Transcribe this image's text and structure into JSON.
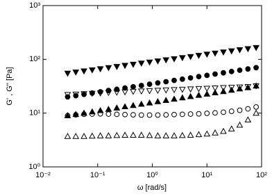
{
  "chart_data": {
    "type": "scatter",
    "xlabel": "ω [rad/s]",
    "ylabel": "G' , G'' [Pa]",
    "xscale": "log",
    "yscale": "log",
    "xlim": [
      0.01,
      100
    ],
    "ylim": [
      1,
      1000
    ],
    "xticks": [
      {
        "value": 0.01,
        "label": "10⁻²"
      },
      {
        "value": 0.1,
        "label": "10⁻¹"
      },
      {
        "value": 1,
        "label": "10⁰"
      },
      {
        "value": 10,
        "label": "10¹"
      },
      {
        "value": 100,
        "label": "10²"
      }
    ],
    "yticks": [
      {
        "value": 1,
        "label": "10⁰"
      },
      {
        "value": 10,
        "label": "10¹"
      },
      {
        "value": 100,
        "label": "10²"
      },
      {
        "value": 1000,
        "label": "10³"
      }
    ],
    "x": [
      0.0282,
      0.0398,
      0.0562,
      0.0794,
      0.112,
      0.158,
      0.224,
      0.316,
      0.447,
      0.631,
      0.891,
      1.26,
      1.78,
      2.51,
      3.55,
      5.01,
      7.08,
      10,
      14.1,
      20,
      28.2,
      39.8,
      56.2,
      79.4
    ],
    "series": [
      {
        "marker": "triangle-down",
        "filled": true,
        "color": "#000000",
        "values": [
          55,
          57.7,
          60.5,
          63.4,
          66.5,
          69.8,
          73.2,
          76.8,
          80.5,
          84.5,
          88.6,
          92.9,
          97.5,
          102,
          107,
          112,
          118,
          124,
          130,
          136,
          143,
          150,
          157,
          165
        ]
      },
      {
        "marker": "circle",
        "filled": true,
        "color": "#000000",
        "values": [
          20,
          21.1,
          22.3,
          23.6,
          24.9,
          26.3,
          27.7,
          29.3,
          30.9,
          32.6,
          34.5,
          36.4,
          38.4,
          40.6,
          42.8,
          45.2,
          47.8,
          50.4,
          53.3,
          56.2,
          59.4,
          62.7,
          66.2,
          70
        ]
      },
      {
        "marker": "triangle-down",
        "filled": false,
        "color": "#000000",
        "values": [
          22,
          22.4,
          22.8,
          23.2,
          23.6,
          24,
          24.4,
          24.8,
          25.2,
          25.6,
          26,
          26.4,
          26.8,
          27.2,
          27.6,
          28,
          28.4,
          28.8,
          29.2,
          29.6,
          30,
          30.4,
          31,
          32
        ]
      },
      {
        "marker": "triangle-up",
        "filled": true,
        "color": "#000000",
        "values": [
          9,
          9.5,
          10,
          10.6,
          11.2,
          11.8,
          12.5,
          13.2,
          13.9,
          14.7,
          15.5,
          16.4,
          17.3,
          18.3,
          19.3,
          20.4,
          21.5,
          22.7,
          24,
          25.3,
          26.8,
          28.3,
          29.9,
          32
        ]
      },
      {
        "marker": "circle",
        "filled": false,
        "color": "#000000",
        "values": [
          9,
          9.3,
          9.5,
          9.6,
          9.7,
          9.6,
          9.5,
          9.4,
          9.3,
          9.2,
          9.2,
          9.2,
          9.3,
          9.4,
          9.5,
          9.6,
          9.7,
          9.9,
          10.1,
          10.4,
          10.8,
          11.3,
          12,
          13
        ]
      },
      {
        "marker": "triangle-up",
        "filled": false,
        "color": "#000000",
        "values": [
          3.7,
          3.7,
          3.7,
          3.75,
          3.8,
          3.8,
          3.85,
          3.9,
          3.9,
          3.9,
          3.85,
          3.8,
          3.8,
          3.8,
          3.85,
          3.9,
          4,
          4.1,
          4.3,
          4.6,
          5.1,
          6,
          7.5,
          10
        ]
      }
    ]
  }
}
